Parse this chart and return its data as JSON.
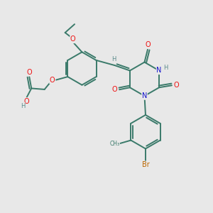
{
  "bg_color": "#e8e8e8",
  "bond_color": "#3a7a6a",
  "bond_width": 1.4,
  "atom_colors": {
    "O": "#ee1111",
    "N": "#1111cc",
    "H": "#5a8a8a",
    "Br": "#bb6600",
    "C": "#3a7a6a"
  },
  "font_size": 7.0,
  "figsize": [
    3.0,
    3.0
  ],
  "dpi": 100
}
